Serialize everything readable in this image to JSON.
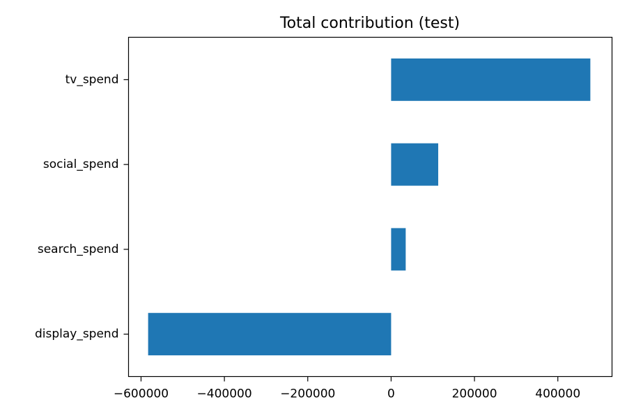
{
  "chart_data": {
    "type": "bar",
    "orientation": "horizontal",
    "title": "Total contribution (test)",
    "xlabel": "",
    "ylabel": "",
    "categories": [
      "tv_spend",
      "social_spend",
      "search_spend",
      "display_spend"
    ],
    "values": [
      478000,
      113000,
      35000,
      -583000
    ],
    "xlim": [
      -630000,
      530000
    ],
    "xticks": [
      -600000,
      -400000,
      -200000,
      0,
      200000,
      400000
    ],
    "xtick_labels": [
      "−600000",
      "−400000",
      "−200000",
      "0",
      "200000",
      "400000"
    ],
    "grid": false,
    "bar_color": "#1f77b4"
  }
}
